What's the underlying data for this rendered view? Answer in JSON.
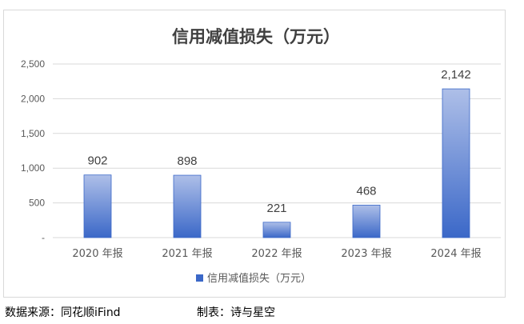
{
  "chart_data": {
    "type": "bar",
    "title": "信用减值损失（万元）",
    "categories": [
      "2020 年报",
      "2021 年报",
      "2022 年报",
      "2023 年报",
      "2024 年报"
    ],
    "series": [
      {
        "name": "信用减值损失（万元）",
        "values": [
          902,
          898,
          221,
          468,
          2142
        ]
      }
    ],
    "data_labels": [
      "902",
      "898",
      "221",
      "468",
      "2,142"
    ],
    "y_ticks": [
      "-",
      "500",
      "1,000",
      "1,500",
      "2,000",
      "2,500"
    ],
    "ylim": [
      0,
      2500
    ],
    "grid": true,
    "legend_position": "bottom",
    "colors": {
      "bar_top": "#aebfe8",
      "bar_bottom": "#3b68c8",
      "grid": "#d9d9d9"
    }
  },
  "footer": {
    "source": "数据来源：同花顺iFind",
    "author": "制表：诗与星空"
  }
}
